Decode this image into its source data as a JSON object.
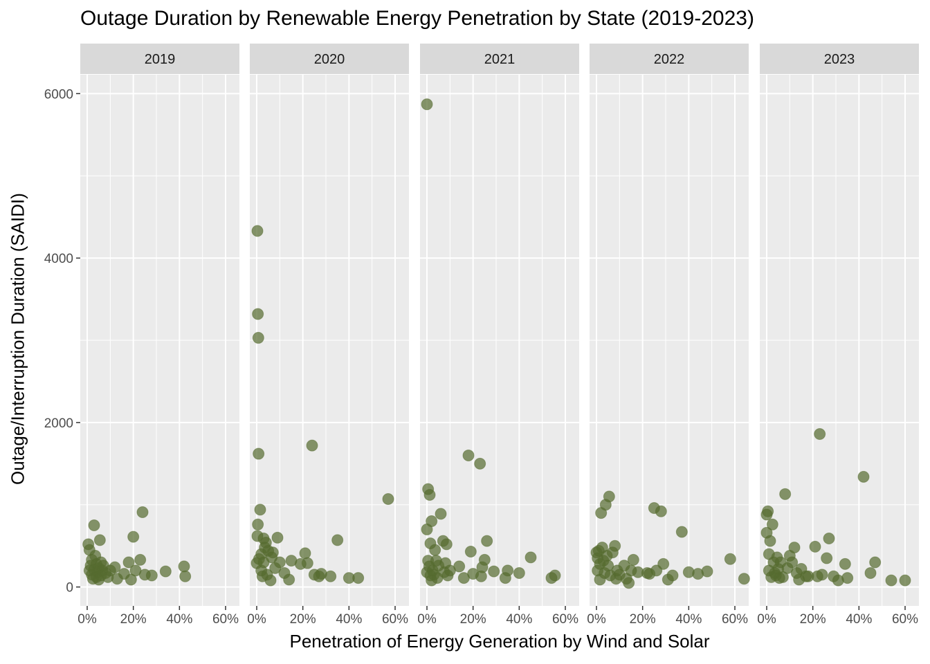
{
  "chart_data": {
    "type": "scatter",
    "title": "Outage Duration by Renewable Energy Penetration by State (2019-2023)",
    "xlabel": "Penetration of Energy Generation by Wind and Solar",
    "ylabel": "Outage/Interruption Duration (SAIDI)",
    "xlim": [
      -0.03,
      0.66
    ],
    "ylim": [
      -230,
      6230
    ],
    "x_ticks": [
      "0%",
      "20%",
      "40%",
      "60%"
    ],
    "y_ticks": [
      "0",
      "2000",
      "4000",
      "6000"
    ],
    "grid": true,
    "point_color": "#556B2F",
    "facets": [
      {
        "label": "2019",
        "points": [
          [
            0.005,
            520
          ],
          [
            0.01,
            450
          ],
          [
            0.01,
            200
          ],
          [
            0.015,
            260
          ],
          [
            0.02,
            150
          ],
          [
            0.02,
            330
          ],
          [
            0.025,
            100
          ],
          [
            0.03,
            750
          ],
          [
            0.03,
            210
          ],
          [
            0.035,
            380
          ],
          [
            0.04,
            120
          ],
          [
            0.04,
            280
          ],
          [
            0.045,
            180
          ],
          [
            0.05,
            90
          ],
          [
            0.05,
            230
          ],
          [
            0.055,
            570
          ],
          [
            0.06,
            300
          ],
          [
            0.06,
            140
          ],
          [
            0.065,
            200
          ],
          [
            0.07,
            260
          ],
          [
            0.08,
            170
          ],
          [
            0.09,
            120
          ],
          [
            0.1,
            200
          ],
          [
            0.12,
            240
          ],
          [
            0.13,
            100
          ],
          [
            0.16,
            160
          ],
          [
            0.18,
            300
          ],
          [
            0.19,
            90
          ],
          [
            0.2,
            610
          ],
          [
            0.21,
            200
          ],
          [
            0.23,
            330
          ],
          [
            0.24,
            910
          ],
          [
            0.25,
            150
          ],
          [
            0.28,
            140
          ],
          [
            0.34,
            190
          ],
          [
            0.42,
            250
          ],
          [
            0.425,
            130
          ]
        ]
      },
      {
        "label": "2020",
        "points": [
          [
            0.003,
            4330
          ],
          [
            0.005,
            3320
          ],
          [
            0.007,
            3030
          ],
          [
            0.008,
            1620
          ],
          [
            0.005,
            760
          ],
          [
            0.003,
            620
          ],
          [
            0.0,
            290
          ],
          [
            0.01,
            340
          ],
          [
            0.015,
            940
          ],
          [
            0.02,
            400
          ],
          [
            0.02,
            200
          ],
          [
            0.025,
            130
          ],
          [
            0.03,
            590
          ],
          [
            0.03,
            300
          ],
          [
            0.035,
            480
          ],
          [
            0.04,
            540
          ],
          [
            0.045,
            150
          ],
          [
            0.05,
            440
          ],
          [
            0.06,
            80
          ],
          [
            0.065,
            360
          ],
          [
            0.07,
            420
          ],
          [
            0.08,
            230
          ],
          [
            0.09,
            600
          ],
          [
            0.1,
            300
          ],
          [
            0.12,
            170
          ],
          [
            0.14,
            90
          ],
          [
            0.15,
            320
          ],
          [
            0.19,
            280
          ],
          [
            0.21,
            410
          ],
          [
            0.22,
            290
          ],
          [
            0.24,
            1720
          ],
          [
            0.25,
            150
          ],
          [
            0.27,
            130
          ],
          [
            0.28,
            160
          ],
          [
            0.32,
            130
          ],
          [
            0.35,
            570
          ],
          [
            0.4,
            110
          ],
          [
            0.44,
            110
          ],
          [
            0.57,
            1070
          ]
        ]
      },
      {
        "label": "2021",
        "points": [
          [
            0.0,
            5870
          ],
          [
            0.005,
            1190
          ],
          [
            0.012,
            1120
          ],
          [
            0.0,
            700
          ],
          [
            0.02,
            800
          ],
          [
            0.015,
            530
          ],
          [
            0.005,
            320
          ],
          [
            0.0,
            180
          ],
          [
            0.01,
            250
          ],
          [
            0.015,
            140
          ],
          [
            0.02,
            80
          ],
          [
            0.025,
            200
          ],
          [
            0.03,
            150
          ],
          [
            0.035,
            450
          ],
          [
            0.04,
            320
          ],
          [
            0.045,
            110
          ],
          [
            0.05,
            260
          ],
          [
            0.06,
            890
          ],
          [
            0.07,
            560
          ],
          [
            0.075,
            180
          ],
          [
            0.08,
            290
          ],
          [
            0.085,
            520
          ],
          [
            0.09,
            140
          ],
          [
            0.1,
            200
          ],
          [
            0.14,
            250
          ],
          [
            0.16,
            110
          ],
          [
            0.18,
            1600
          ],
          [
            0.19,
            430
          ],
          [
            0.2,
            160
          ],
          [
            0.23,
            1500
          ],
          [
            0.235,
            130
          ],
          [
            0.24,
            240
          ],
          [
            0.25,
            330
          ],
          [
            0.26,
            560
          ],
          [
            0.29,
            190
          ],
          [
            0.34,
            110
          ],
          [
            0.35,
            200
          ],
          [
            0.4,
            170
          ],
          [
            0.45,
            360
          ],
          [
            0.54,
            110
          ],
          [
            0.555,
            140
          ]
        ]
      },
      {
        "label": "2022",
        "points": [
          [
            0.0,
            420
          ],
          [
            0.005,
            350
          ],
          [
            0.005,
            200
          ],
          [
            0.01,
            440
          ],
          [
            0.015,
            280
          ],
          [
            0.015,
            90
          ],
          [
            0.02,
            900
          ],
          [
            0.025,
            480
          ],
          [
            0.03,
            320
          ],
          [
            0.035,
            170
          ],
          [
            0.04,
            1000
          ],
          [
            0.045,
            380
          ],
          [
            0.05,
            260
          ],
          [
            0.055,
            1100
          ],
          [
            0.06,
            140
          ],
          [
            0.07,
            420
          ],
          [
            0.08,
            500
          ],
          [
            0.085,
            100
          ],
          [
            0.09,
            200
          ],
          [
            0.1,
            150
          ],
          [
            0.12,
            260
          ],
          [
            0.13,
            100
          ],
          [
            0.14,
            50
          ],
          [
            0.15,
            200
          ],
          [
            0.16,
            330
          ],
          [
            0.18,
            180
          ],
          [
            0.22,
            170
          ],
          [
            0.23,
            160
          ],
          [
            0.25,
            960
          ],
          [
            0.26,
            200
          ],
          [
            0.28,
            920
          ],
          [
            0.29,
            280
          ],
          [
            0.31,
            90
          ],
          [
            0.33,
            140
          ],
          [
            0.37,
            670
          ],
          [
            0.4,
            180
          ],
          [
            0.44,
            160
          ],
          [
            0.48,
            190
          ],
          [
            0.58,
            340
          ],
          [
            0.64,
            100
          ]
        ]
      },
      {
        "label": "2023",
        "points": [
          [
            0.0,
            880
          ],
          [
            0.005,
            920
          ],
          [
            0.0,
            660
          ],
          [
            0.01,
            400
          ],
          [
            0.01,
            200
          ],
          [
            0.015,
            560
          ],
          [
            0.02,
            120
          ],
          [
            0.025,
            760
          ],
          [
            0.03,
            300
          ],
          [
            0.035,
            170
          ],
          [
            0.04,
            140
          ],
          [
            0.045,
            360
          ],
          [
            0.05,
            220
          ],
          [
            0.055,
            110
          ],
          [
            0.06,
            300
          ],
          [
            0.07,
            120
          ],
          [
            0.08,
            1130
          ],
          [
            0.09,
            230
          ],
          [
            0.1,
            380
          ],
          [
            0.11,
            300
          ],
          [
            0.12,
            480
          ],
          [
            0.13,
            170
          ],
          [
            0.14,
            90
          ],
          [
            0.15,
            220
          ],
          [
            0.17,
            130
          ],
          [
            0.18,
            130
          ],
          [
            0.21,
            490
          ],
          [
            0.22,
            130
          ],
          [
            0.23,
            1860
          ],
          [
            0.24,
            150
          ],
          [
            0.26,
            350
          ],
          [
            0.27,
            590
          ],
          [
            0.29,
            130
          ],
          [
            0.31,
            80
          ],
          [
            0.34,
            280
          ],
          [
            0.35,
            110
          ],
          [
            0.42,
            1340
          ],
          [
            0.45,
            170
          ],
          [
            0.47,
            300
          ],
          [
            0.54,
            80
          ],
          [
            0.6,
            80
          ]
        ]
      }
    ]
  }
}
